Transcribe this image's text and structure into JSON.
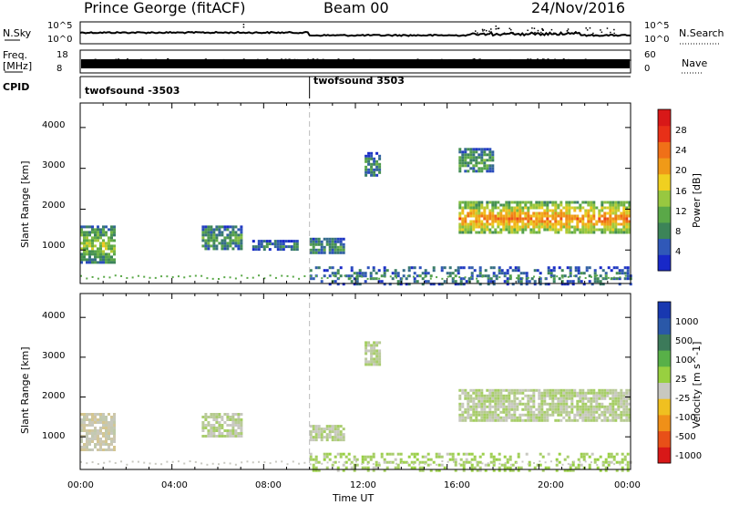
{
  "header": {
    "station": "Prince George (fitACF)",
    "beam": "Beam 00",
    "date": "24/Nov/2016"
  },
  "top_panels": {
    "nsky_label": "N.Sky",
    "nsky_ticks": [
      "10^5",
      "10^0"
    ],
    "nsearch_label": "N.Search",
    "freq_label": "Freq.",
    "freq_unit": "[MHz]",
    "freq_ticks": [
      "18",
      "8"
    ],
    "nave_label": "Nave",
    "nave_ticks": [
      "60",
      "0"
    ],
    "cpid_label": "CPID",
    "cpid_segments": [
      "twofsound -3503",
      "twofsound 3503"
    ],
    "cpid_change_time": "10:00"
  },
  "colors": {
    "power_scale": [
      "#1828c8",
      "#3058b8",
      "#3c8458",
      "#5aa848",
      "#98c840",
      "#f0d020",
      "#f09a18",
      "#f07018",
      "#e83018",
      "#d81818"
    ],
    "velocity_scale": [
      "#1838b0",
      "#2a58a8",
      "#3c7a5a",
      "#58b048",
      "#98d040",
      "#c8c8c0",
      "#f0c020",
      "#f09018",
      "#e85018",
      "#d81818"
    ]
  },
  "chart_data": [
    {
      "type": "heatmap",
      "title": "Power",
      "xlabel": "",
      "ylabel": "Slant Range [km]",
      "x_ticks": [
        "00:00",
        "04:00",
        "08:00",
        "12:00",
        "16:00",
        "20:00",
        "00:00"
      ],
      "y_ticks": [
        "1000",
        "2000",
        "3000",
        "4000"
      ],
      "xlim": [
        0,
        24
      ],
      "ylim": [
        180,
        4600
      ],
      "colorbar": {
        "label": "Power [dB]",
        "ticks": [
          "4",
          "8",
          "12",
          "16",
          "20",
          "24",
          "28"
        ],
        "range": [
          0,
          30
        ]
      },
      "regions": [
        {
          "t": [
            0.0,
            1.5
          ],
          "r": [
            700,
            1600
          ],
          "level": 14
        },
        {
          "t": [
            5.3,
            7.0
          ],
          "r": [
            1000,
            1600
          ],
          "level": 10
        },
        {
          "t": [
            7.5,
            9.5
          ],
          "r": [
            1000,
            1250
          ],
          "level": 6
        },
        {
          "t": [
            10.0,
            11.5
          ],
          "r": [
            900,
            1300
          ],
          "level": 8
        },
        {
          "t": [
            12.4,
            13.0
          ],
          "r": [
            2800,
            3400
          ],
          "level": 8
        },
        {
          "t": [
            16.5,
            24.0
          ],
          "r": [
            1400,
            2200
          ],
          "level": 22
        },
        {
          "t": [
            16.5,
            18.0
          ],
          "r": [
            2900,
            3500
          ],
          "level": 10
        },
        {
          "t": [
            10.0,
            24.0
          ],
          "r": [
            180,
            600
          ],
          "level": 6
        }
      ]
    },
    {
      "type": "heatmap",
      "title": "Velocity",
      "xlabel": "Time UT",
      "ylabel": "Slant Range [km]",
      "x_ticks": [
        "00:00",
        "04:00",
        "08:00",
        "12:00",
        "16:00",
        "20:00",
        "00:00"
      ],
      "y_ticks": [
        "1000",
        "2000",
        "3000",
        "4000"
      ],
      "xlim": [
        0,
        24
      ],
      "ylim": [
        180,
        4600
      ],
      "colorbar": {
        "label": "Velocity [m s^-1]",
        "ticks": [
          "1000",
          "500",
          "100",
          "25",
          "-25",
          "-100",
          "-500",
          "-1000"
        ],
        "range": [
          -1200,
          1200
        ]
      },
      "regions": [
        {
          "t": [
            0.0,
            1.5
          ],
          "r": [
            700,
            1600
          ],
          "level": -150
        },
        {
          "t": [
            5.3,
            7.0
          ],
          "r": [
            1000,
            1600
          ],
          "level": 0
        },
        {
          "t": [
            10.0,
            11.5
          ],
          "r": [
            900,
            1300
          ],
          "level": 0
        },
        {
          "t": [
            12.4,
            13.0
          ],
          "r": [
            2800,
            3400
          ],
          "level": 0
        },
        {
          "t": [
            16.5,
            24.0
          ],
          "r": [
            1400,
            2200
          ],
          "level": 0
        },
        {
          "t": [
            10.0,
            24.0
          ],
          "r": [
            180,
            600
          ],
          "level": 80
        }
      ]
    }
  ]
}
